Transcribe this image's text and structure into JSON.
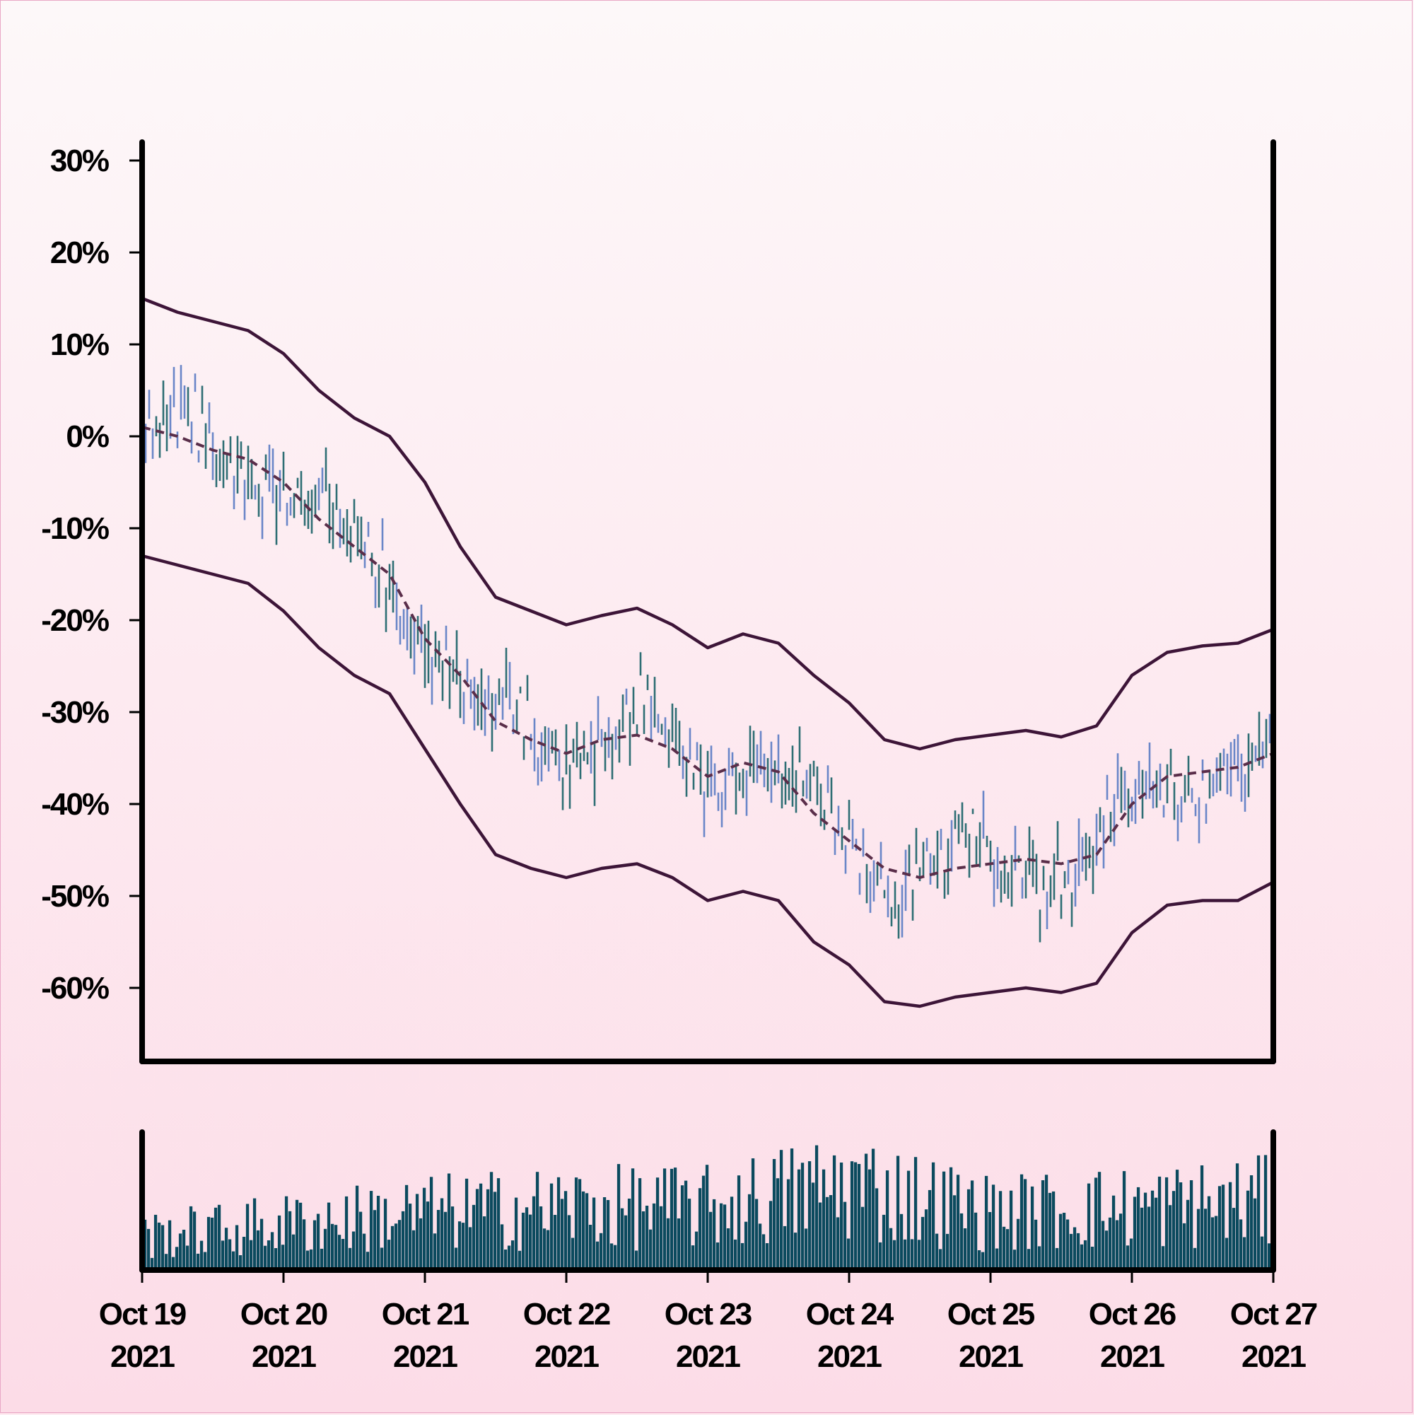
{
  "chart_data": {
    "type": "ohlc",
    "price_panel": {
      "y_unit": "%",
      "y_ticks": [
        30,
        20,
        10,
        0,
        -10,
        -20,
        -30,
        -40,
        -50,
        -60
      ],
      "y_tick_labels": [
        "30%",
        "20%",
        "10%",
        "0%",
        "-10%",
        "-20%",
        "-30%",
        "-40%",
        "-50%",
        "-60%"
      ],
      "ylim": [
        -68,
        32
      ],
      "bar_count": 320,
      "up_color": "#2e6e74",
      "down_color": "#6a86c8",
      "moving_average": {
        "style": "dashed",
        "color": "#5a2e4a",
        "points": [
          [
            "2021-10-19T00:00",
            1
          ],
          [
            "2021-10-19T06:00",
            0
          ],
          [
            "2021-10-19T12:00",
            -1.5
          ],
          [
            "2021-10-19T18:00",
            -2.5
          ],
          [
            "2021-10-20T00:00",
            -5
          ],
          [
            "2021-10-20T06:00",
            -9
          ],
          [
            "2021-10-20T12:00",
            -12
          ],
          [
            "2021-10-20T18:00",
            -15
          ],
          [
            "2021-10-21T00:00",
            -22
          ],
          [
            "2021-10-21T06:00",
            -26
          ],
          [
            "2021-10-21T12:00",
            -31
          ],
          [
            "2021-10-21T18:00",
            -33
          ],
          [
            "2021-10-22T00:00",
            -34.5
          ],
          [
            "2021-10-22T06:00",
            -33
          ],
          [
            "2021-10-22T12:00",
            -32.5
          ],
          [
            "2021-10-22T18:00",
            -34
          ],
          [
            "2021-10-23T00:00",
            -37
          ],
          [
            "2021-10-23T06:00",
            -35.5
          ],
          [
            "2021-10-23T12:00",
            -36.5
          ],
          [
            "2021-10-23T18:00",
            -41
          ],
          [
            "2021-10-24T00:00",
            -44
          ],
          [
            "2021-10-24T06:00",
            -47
          ],
          [
            "2021-10-24T12:00",
            -48
          ],
          [
            "2021-10-24T18:00",
            -47
          ],
          [
            "2021-10-25T00:00",
            -46.5
          ],
          [
            "2021-10-25T06:00",
            -46
          ],
          [
            "2021-10-25T12:00",
            -46.5
          ],
          [
            "2021-10-25T18:00",
            -45.5
          ],
          [
            "2021-10-26T00:00",
            -40
          ],
          [
            "2021-10-26T06:00",
            -37
          ],
          [
            "2021-10-26T12:00",
            -36.5
          ],
          [
            "2021-10-26T18:00",
            -36
          ],
          [
            "2021-10-27T00:00",
            -34.5
          ]
        ]
      },
      "band_upper": [
        [
          "2021-10-19T00:00",
          15
        ],
        [
          "2021-10-19T06:00",
          13.5
        ],
        [
          "2021-10-19T12:00",
          12.5
        ],
        [
          "2021-10-19T18:00",
          11.5
        ],
        [
          "2021-10-20T00:00",
          9
        ],
        [
          "2021-10-20T06:00",
          5
        ],
        [
          "2021-10-20T12:00",
          2
        ],
        [
          "2021-10-20T18:00",
          0
        ],
        [
          "2021-10-21T00:00",
          -5
        ],
        [
          "2021-10-21T06:00",
          -12
        ],
        [
          "2021-10-21T12:00",
          -17.5
        ],
        [
          "2021-10-21T18:00",
          -19
        ],
        [
          "2021-10-22T00:00",
          -20.5
        ],
        [
          "2021-10-22T06:00",
          -19.5
        ],
        [
          "2021-10-22T12:00",
          -18.7
        ],
        [
          "2021-10-22T18:00",
          -20.5
        ],
        [
          "2021-10-23T00:00",
          -23
        ],
        [
          "2021-10-23T06:00",
          -21.5
        ],
        [
          "2021-10-23T12:00",
          -22.5
        ],
        [
          "2021-10-23T18:00",
          -26
        ],
        [
          "2021-10-24T00:00",
          -29
        ],
        [
          "2021-10-24T06:00",
          -33
        ],
        [
          "2021-10-24T12:00",
          -34
        ],
        [
          "2021-10-24T18:00",
          -33
        ],
        [
          "2021-10-25T00:00",
          -32.5
        ],
        [
          "2021-10-25T06:00",
          -32
        ],
        [
          "2021-10-25T12:00",
          -32.7
        ],
        [
          "2021-10-25T18:00",
          -31.5
        ],
        [
          "2021-10-26T00:00",
          -26
        ],
        [
          "2021-10-26T06:00",
          -23.5
        ],
        [
          "2021-10-26T12:00",
          -22.8
        ],
        [
          "2021-10-26T18:00",
          -22.5
        ],
        [
          "2021-10-27T00:00",
          -21
        ]
      ],
      "band_lower": [
        [
          "2021-10-19T00:00",
          -13
        ],
        [
          "2021-10-19T06:00",
          -14
        ],
        [
          "2021-10-19T12:00",
          -15
        ],
        [
          "2021-10-19T18:00",
          -16
        ],
        [
          "2021-10-20T00:00",
          -19
        ],
        [
          "2021-10-20T06:00",
          -23
        ],
        [
          "2021-10-20T12:00",
          -26
        ],
        [
          "2021-10-20T18:00",
          -28
        ],
        [
          "2021-10-21T00:00",
          -34
        ],
        [
          "2021-10-21T06:00",
          -40
        ],
        [
          "2021-10-21T12:00",
          -45.5
        ],
        [
          "2021-10-21T18:00",
          -47
        ],
        [
          "2021-10-22T00:00",
          -48
        ],
        [
          "2021-10-22T06:00",
          -47
        ],
        [
          "2021-10-22T12:00",
          -46.5
        ],
        [
          "2021-10-22T18:00",
          -48
        ],
        [
          "2021-10-23T00:00",
          -50.5
        ],
        [
          "2021-10-23T06:00",
          -49.5
        ],
        [
          "2021-10-23T12:00",
          -50.5
        ],
        [
          "2021-10-23T18:00",
          -55
        ],
        [
          "2021-10-24T00:00",
          -57.5
        ],
        [
          "2021-10-24T06:00",
          -61.5
        ],
        [
          "2021-10-24T12:00",
          -62
        ],
        [
          "2021-10-24T18:00",
          -61
        ],
        [
          "2021-10-25T00:00",
          -60.5
        ],
        [
          "2021-10-25T06:00",
          -60
        ],
        [
          "2021-10-25T12:00",
          -60.5
        ],
        [
          "2021-10-25T18:00",
          -59.5
        ],
        [
          "2021-10-26T00:00",
          -54
        ],
        [
          "2021-10-26T06:00",
          -51
        ],
        [
          "2021-10-26T12:00",
          -50.5
        ],
        [
          "2021-10-26T18:00",
          -50.5
        ],
        [
          "2021-10-27T00:00",
          -48.5
        ]
      ]
    },
    "volume_panel": {
      "bar_color": "#0b4a5e",
      "relative_volume_envelope": [
        [
          "2021-10-19",
          0.3
        ],
        [
          "2021-10-20",
          0.4
        ],
        [
          "2021-10-21",
          0.5
        ],
        [
          "2021-10-22",
          0.55
        ],
        [
          "2021-10-23",
          0.55
        ],
        [
          "2021-10-24",
          0.75
        ],
        [
          "2021-10-25",
          0.5
        ],
        [
          "2021-10-26",
          0.55
        ],
        [
          "2021-10-27",
          0.6
        ]
      ]
    },
    "x_axis": {
      "type": "date",
      "xlim": [
        "2021-10-19",
        "2021-10-27"
      ],
      "tick_dates": [
        "2021-10-19",
        "2021-10-20",
        "2021-10-21",
        "2021-10-22",
        "2021-10-23",
        "2021-10-24",
        "2021-10-25",
        "2021-10-26",
        "2021-10-27"
      ],
      "tick_labels": [
        [
          "Oct 19",
          "2021"
        ],
        [
          "Oct 20",
          "2021"
        ],
        [
          "Oct 21",
          "2021"
        ],
        [
          "Oct 22",
          "2021"
        ],
        [
          "Oct 23",
          "2021"
        ],
        [
          "Oct 24",
          "2021"
        ],
        [
          "Oct 25",
          "2021"
        ],
        [
          "Oct 26",
          "2021"
        ],
        [
          "Oct 27",
          "2021"
        ]
      ]
    },
    "band_color": "#3d1538",
    "axis_color": "#000000"
  }
}
